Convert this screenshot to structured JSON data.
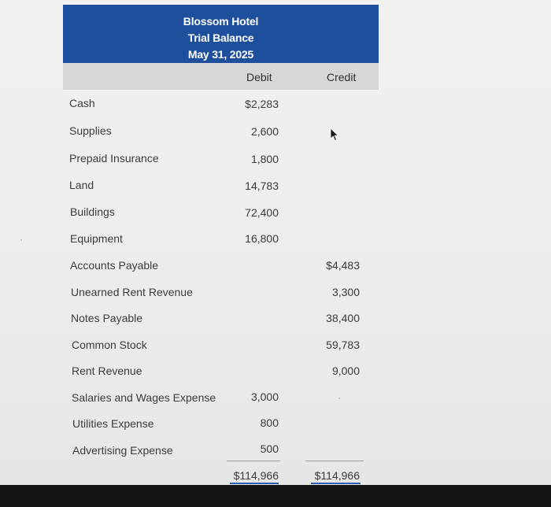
{
  "header": {
    "company": "Blossom Hotel",
    "statement": "Trial Balance",
    "date": "May 31, 2025"
  },
  "columns": {
    "debit": "Debit",
    "credit": "Credit"
  },
  "rows": [
    {
      "account": "Cash",
      "debit": "$2,283",
      "credit": ""
    },
    {
      "account": "Supplies",
      "debit": "2,600",
      "credit": ""
    },
    {
      "account": "Prepaid Insurance",
      "debit": "1,800",
      "credit": ""
    },
    {
      "account": "Land",
      "debit": "14,783",
      "credit": ""
    },
    {
      "account": "Buildings",
      "debit": "72,400",
      "credit": ""
    },
    {
      "account": "Equipment",
      "debit": "16,800",
      "credit": ""
    },
    {
      "account": "Accounts Payable",
      "debit": "",
      "credit": "$4,483"
    },
    {
      "account": "Unearned Rent Revenue",
      "debit": "",
      "credit": "3,300"
    },
    {
      "account": "Notes Payable",
      "debit": "",
      "credit": "38,400"
    },
    {
      "account": "Common Stock",
      "debit": "",
      "credit": "59,783"
    },
    {
      "account": "Rent Revenue",
      "debit": "",
      "credit": "9,000"
    },
    {
      "account": "Salaries and Wages Expense",
      "debit": "3,000",
      "credit": ""
    },
    {
      "account": "Utilities Expense",
      "debit": "800",
      "credit": ""
    },
    {
      "account": "Advertising Expense",
      "debit": "500",
      "credit": ""
    }
  ],
  "totals": {
    "debit": "$114,966",
    "credit": "$114,966"
  }
}
